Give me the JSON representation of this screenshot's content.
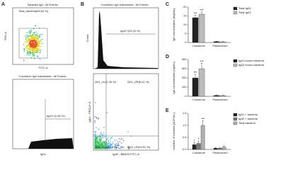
{
  "panel_letters": [
    "A",
    "B",
    "C",
    "D",
    "E"
  ],
  "panel_a": {
    "top_title": "Samples IgA : All Events",
    "gate": "Total_bacteria(99.64 %)",
    "y_axis": "SSC-A",
    "x_axis": "FITC-A",
    "bottom_title": "Colostrum IgA subclasses : All Events",
    "bottom_gate": "IgA1+(1.65 %)",
    "bottom_x_axis": "IgA1"
  },
  "panel_b": {
    "title": "Colostrum IgA subclasses : All Events",
    "hist_y": "Count",
    "hist_gate": "IgA2+(29.15 %)",
    "q1": "Q01_UL(1.26 %)",
    "q2": "Q02_UR(5.61 %)",
    "q3": "Q03_LR(23.91 %)",
    "q4": "Q04_LL(69.22 %)",
    "y_axis": "IgA1 - PE/Cy7-A",
    "x_axis": "IgA2 - BB515-FITC-A"
  },
  "chart_data": [
    {
      "type": "bar",
      "y_label": "IgA concentration [mg/mL]",
      "categories": [
        "Colostrum",
        "Pasteurized"
      ],
      "ylim": [
        0,
        20
      ],
      "yticks": [
        0,
        5,
        10,
        15,
        20
      ],
      "series": [
        {
          "name": "Total IgA1",
          "color": "#222222",
          "values": [
            14,
            0.5
          ],
          "errors": [
            1.5,
            0.2
          ],
          "stars": [
            "***",
            null
          ]
        },
        {
          "name": "Total IgA2",
          "color": "#bbbbbb",
          "values": [
            16,
            0.4
          ],
          "errors": [
            1.2,
            0.2
          ],
          "stars": [
            "***",
            null
          ]
        }
      ]
    },
    {
      "type": "bar",
      "y_label": "IgA concentration [ng/mL]",
      "categories": [
        "Colostrum",
        "Pasteurized"
      ],
      "ylim": [
        0,
        400
      ],
      "yticks": [
        0,
        100,
        200,
        300,
        400
      ],
      "series": [
        {
          "name": "IgA1 bound bacteria",
          "color": "#222222",
          "values": [
            200,
            10
          ],
          "errors": [
            40,
            5
          ],
          "stars": [
            "***",
            null
          ]
        },
        {
          "name": "IgA2 bound bacteria",
          "color": "#bbbbbb",
          "values": [
            300,
            8
          ],
          "errors": [
            60,
            5
          ],
          "stars": [
            "***",
            null
          ]
        }
      ]
    },
    {
      "type": "bar",
      "y_label": "Number of bacteria [x10⁶/mL]",
      "categories": [
        "Colostrum",
        "Pasteurized"
      ],
      "ylim": [
        0,
        1.5
      ],
      "yticks": [
        {
          "value": 0,
          "label": "0.0"
        },
        0.5,
        {
          "value": 1,
          "label": "1.0"
        },
        1.5
      ],
      "series": [
        {
          "name": "IgA1 + bacteria",
          "color": "#222222",
          "values": [
            0.2,
            0.05
          ],
          "errors": [
            0.1,
            0.03
          ],
          "stars": [
            "*",
            null
          ]
        },
        {
          "name": "IgA2 + bacteria",
          "color": "#777777",
          "values": [
            0.25,
            0.05
          ],
          "errors": [
            0.1,
            0.03
          ],
          "stars": [
            "*",
            null
          ]
        },
        {
          "name": "Total bacteria",
          "color": "#b0b0b0",
          "values": [
            1.0,
            0.1
          ],
          "errors": [
            0.2,
            0.05
          ],
          "stars": [
            "***",
            null
          ]
        }
      ]
    }
  ]
}
